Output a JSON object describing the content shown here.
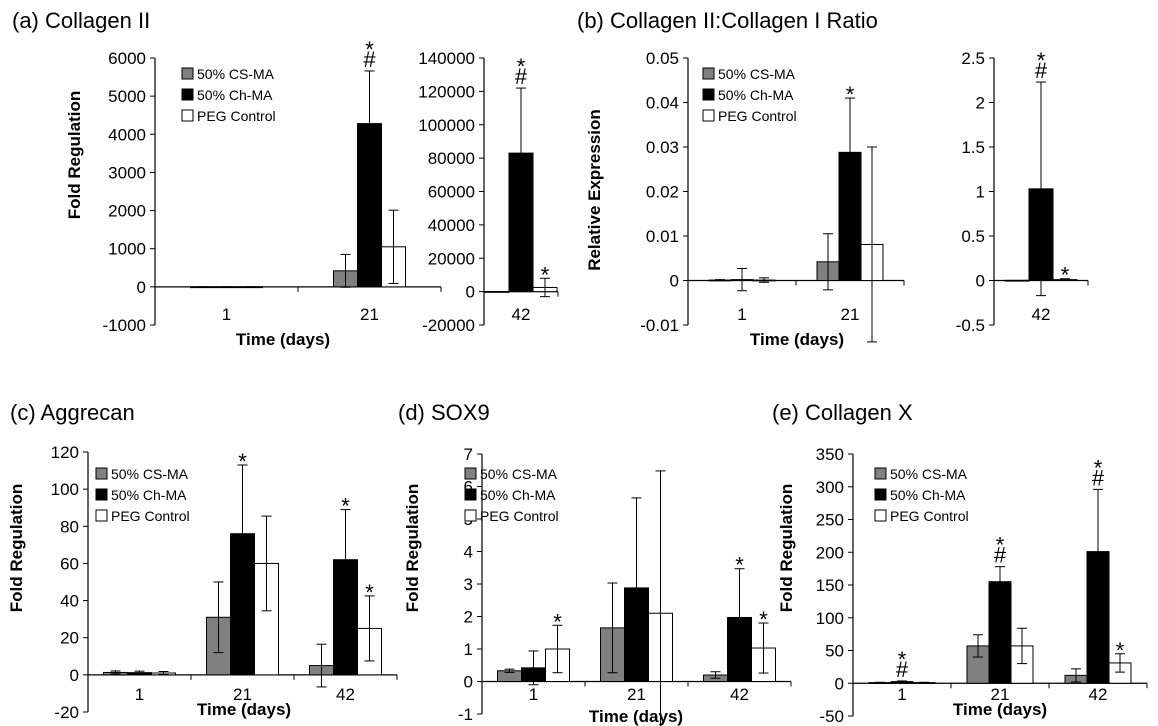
{
  "colors": {
    "CS": "#808080",
    "CH": "#000000",
    "PEG": "#ffffff"
  },
  "chart_data": [
    {
      "id": "a-left",
      "type": "bar",
      "title": "(a) Collagen II",
      "xlabel": "Time (days)",
      "ylabel": "Fold Regulation",
      "ylim": [
        -1000,
        6000
      ],
      "yticks": [
        "-1000",
        "0",
        "1000",
        "2000",
        "3000",
        "4000",
        "5000",
        "6000"
      ],
      "categories": [
        "1",
        "21"
      ],
      "legend": "top-left",
      "series": [
        {
          "name": "50% CS-MA",
          "color_key": "CS",
          "values": [
            1,
            420
          ],
          "errors": [
            1,
            430
          ],
          "marks": [
            "",
            ""
          ]
        },
        {
          "name": "50% Ch-MA",
          "color_key": "CH",
          "values": [
            1,
            4280
          ],
          "errors": [
            1,
            1380
          ],
          "marks": [
            "",
            "*\n#"
          ]
        },
        {
          "name": "PEG Control",
          "color_key": "PEG",
          "values": [
            1,
            1050
          ],
          "errors": [
            1,
            960
          ],
          "marks": [
            "",
            ""
          ]
        }
      ]
    },
    {
      "id": "a-right",
      "type": "bar",
      "title": "",
      "xlabel": "",
      "ylabel": "",
      "ylim": [
        -20000,
        140000
      ],
      "yticks": [
        "-20000",
        "0",
        "20000",
        "40000",
        "60000",
        "80000",
        "100000",
        "120000",
        "140000"
      ],
      "categories": [
        "42"
      ],
      "series": [
        {
          "name": "",
          "color_key": "CS",
          "values": [
            50
          ],
          "errors": [
            0
          ],
          "marks": [
            ""
          ]
        },
        {
          "name": "",
          "color_key": "CH",
          "values": [
            83000
          ],
          "errors": [
            39000
          ],
          "marks": [
            "*\n#"
          ]
        },
        {
          "name": "",
          "color_key": "PEG",
          "values": [
            2500
          ],
          "errors": [
            5500
          ],
          "marks": [
            "*"
          ]
        }
      ]
    },
    {
      "id": "b-left",
      "type": "bar",
      "title": "(b) Collagen II:Collagen I Ratio",
      "xlabel": "Time (days)",
      "ylabel": "Relative Expression",
      "ylim": [
        -0.01,
        0.05
      ],
      "yticks": [
        "-0.01",
        "0",
        "0.01",
        "0.02",
        "0.03",
        "0.04",
        "0.05"
      ],
      "categories": [
        "1",
        "21"
      ],
      "legend": "top-left",
      "series": [
        {
          "name": "50% CS-MA",
          "color_key": "CS",
          "values": [
            0.0001,
            0.0042
          ],
          "errors": [
            0.0001,
            0.0063
          ],
          "marks": [
            "",
            ""
          ]
        },
        {
          "name": "50% Ch-MA",
          "color_key": "CH",
          "values": [
            0.0002,
            0.0288
          ],
          "errors": [
            0.0025,
            0.0122
          ],
          "marks": [
            "",
            "*"
          ]
        },
        {
          "name": "PEG Control",
          "color_key": "PEG",
          "values": [
            0.0001,
            0.0081
          ],
          "errors": [
            0.0005,
            0.0219
          ],
          "marks": [
            "",
            ""
          ]
        }
      ]
    },
    {
      "id": "b-right",
      "type": "bar",
      "title": "",
      "xlabel": "",
      "ylabel": "",
      "ylim": [
        -0.5,
        2.5
      ],
      "yticks": [
        "-0.5",
        "0",
        "0.5",
        "1",
        "1.5",
        "2",
        "2.5"
      ],
      "categories": [
        "42"
      ],
      "series": [
        {
          "name": "",
          "color_key": "CS",
          "values": [
            0.002
          ],
          "errors": [
            0
          ],
          "marks": [
            ""
          ]
        },
        {
          "name": "",
          "color_key": "CH",
          "values": [
            1.03
          ],
          "errors": [
            1.2
          ],
          "marks": [
            "*\n#"
          ]
        },
        {
          "name": "",
          "color_key": "PEG",
          "values": [
            0.01
          ],
          "errors": [
            0.01
          ],
          "marks": [
            "*"
          ]
        }
      ]
    },
    {
      "id": "c",
      "type": "bar",
      "title": "(c) Aggrecan",
      "xlabel": "Time (days)",
      "ylabel": "Fold Regulation",
      "ylim": [
        -20,
        120
      ],
      "yticks": [
        "-20",
        "0",
        "20",
        "40",
        "60",
        "80",
        "100",
        "120"
      ],
      "categories": [
        "1",
        "21",
        "42"
      ],
      "legend": "top-left",
      "series": [
        {
          "name": "50% CS-MA",
          "color_key": "CS",
          "values": [
            1.3,
            31,
            5
          ],
          "errors": [
            0.8,
            19,
            11.5
          ],
          "marks": [
            "",
            "",
            ""
          ]
        },
        {
          "name": "50% Ch-MA",
          "color_key": "CH",
          "values": [
            1.2,
            76,
            62
          ],
          "errors": [
            0.8,
            37,
            27
          ],
          "marks": [
            "",
            "*",
            "*"
          ]
        },
        {
          "name": "PEG Control",
          "color_key": "PEG",
          "values": [
            1,
            60,
            25
          ],
          "errors": [
            0.8,
            25.5,
            17.5
          ],
          "marks": [
            "",
            "",
            "*"
          ]
        }
      ]
    },
    {
      "id": "d",
      "type": "bar",
      "title": "(d) SOX9",
      "xlabel": "Time (days)",
      "ylabel": "Fold Regulation",
      "ylim": [
        -1,
        7
      ],
      "yticks": [
        "-1",
        "0",
        "1",
        "2",
        "3",
        "4",
        "5",
        "6",
        "7"
      ],
      "categories": [
        "1",
        "21",
        "42"
      ],
      "legend": "top-left",
      "series": [
        {
          "name": "50% CS-MA",
          "color_key": "CS",
          "values": [
            0.33,
            1.65,
            0.2
          ],
          "errors": [
            0.05,
            1.38,
            0.1
          ],
          "marks": [
            "",
            "",
            ""
          ]
        },
        {
          "name": "50% Ch-MA",
          "color_key": "CH",
          "values": [
            0.42,
            2.88,
            1.97
          ],
          "errors": [
            0.52,
            2.77,
            1.5
          ],
          "marks": [
            "",
            "",
            "*"
          ]
        },
        {
          "name": "PEG Control",
          "color_key": "PEG",
          "values": [
            1,
            2.1,
            1.03
          ],
          "errors": [
            0.73,
            4.38,
            0.77
          ],
          "marks": [
            "*",
            "",
            "*"
          ]
        }
      ]
    },
    {
      "id": "e",
      "type": "bar",
      "title": "(e) Collagen X",
      "xlabel": "Time (days)",
      "ylabel": "Fold Regulation",
      "ylim": [
        -50,
        350
      ],
      "yticks": [
        "-50",
        "0",
        "50",
        "100",
        "150",
        "200",
        "250",
        "300",
        "350"
      ],
      "categories": [
        "1",
        "21",
        "42"
      ],
      "legend": "top-left",
      "series": [
        {
          "name": "50% CS-MA",
          "color_key": "CS",
          "values": [
            1,
            57,
            12
          ],
          "errors": [
            0.5,
            17,
            10
          ],
          "marks": [
            "",
            "",
            ""
          ]
        },
        {
          "name": "50% Ch-MA",
          "color_key": "CH",
          "values": [
            2.5,
            155,
            201
          ],
          "errors": [
            1,
            23,
            95
          ],
          "marks": [
            "*\n#",
            "*\n#",
            "*\n#"
          ]
        },
        {
          "name": "PEG Control",
          "color_key": "PEG",
          "values": [
            1,
            57,
            31
          ],
          "errors": [
            0.5,
            27,
            14
          ],
          "marks": [
            "",
            "",
            "*"
          ]
        }
      ]
    }
  ]
}
